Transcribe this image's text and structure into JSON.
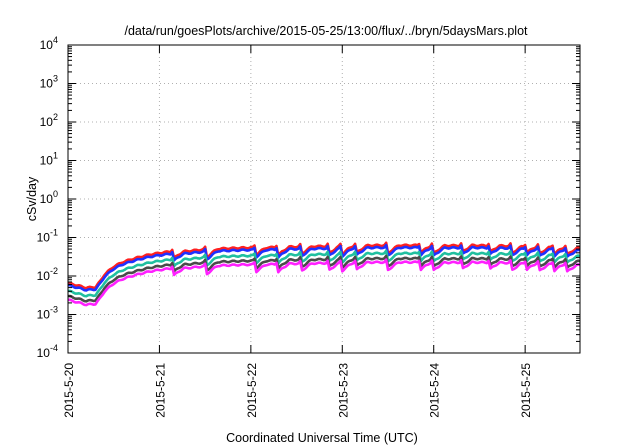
{
  "chart_data": {
    "type": "line",
    "title": "/data/run/goesPlots/archive/2015-05-25/13:00/flux/../bryn/5daysMars.plot",
    "xlabel": "Coordinated Universal Time (UTC)",
    "ylabel": "cSv/day",
    "yscale": "log",
    "ylim": [
      0.0001,
      10000
    ],
    "xlim": [
      0,
      5.6
    ],
    "grid": true,
    "y_ticks": [
      {
        "base": "10",
        "exp": "-4"
      },
      {
        "base": "10",
        "exp": "-3"
      },
      {
        "base": "10",
        "exp": "-2"
      },
      {
        "base": "10",
        "exp": "-1"
      },
      {
        "base": "10",
        "exp": "0"
      },
      {
        "base": "10",
        "exp": "1"
      },
      {
        "base": "10",
        "exp": "2"
      },
      {
        "base": "10",
        "exp": "3"
      },
      {
        "base": "10",
        "exp": "4"
      }
    ],
    "x_ticks": [
      "2015-5-20",
      "2015-5-21",
      "2015-5-22",
      "2015-5-23",
      "2015-5-24",
      "2015-5-25"
    ],
    "x_tick_days": [
      0,
      1,
      2,
      3,
      4,
      5
    ],
    "base_profile": {
      "x_days": [
        0.0,
        0.1,
        0.2,
        0.3,
        0.35,
        0.4,
        0.5,
        0.6,
        0.7,
        0.8,
        0.9,
        1.0,
        1.15,
        1.3,
        1.5,
        1.7,
        1.9,
        2.05,
        2.2,
        2.4,
        2.6,
        2.8,
        3.0,
        3.2,
        3.4,
        3.6,
        3.8,
        4.0,
        4.2,
        4.4,
        4.6,
        4.8,
        5.0,
        5.2,
        5.4,
        5.6
      ],
      "values": [
        0.006,
        0.0052,
        0.0045,
        0.0047,
        0.0065,
        0.01,
        0.016,
        0.021,
        0.025,
        0.029,
        0.033,
        0.036,
        0.04,
        0.04,
        0.045,
        0.047,
        0.049,
        0.05,
        0.05,
        0.052,
        0.053,
        0.054,
        0.055,
        0.056,
        0.057,
        0.057,
        0.057,
        0.056,
        0.056,
        0.057,
        0.056,
        0.055,
        0.054,
        0.052,
        0.05,
        0.048
      ]
    },
    "dip_days": [
      1.15,
      1.52,
      2.05,
      2.3,
      2.55,
      2.85,
      3.0,
      3.15,
      3.5,
      3.85,
      4.0,
      4.3,
      4.6,
      4.85,
      5.0,
      5.15,
      5.3,
      5.45
    ],
    "series": [
      {
        "color": "#ff2020",
        "scale": 1.1
      },
      {
        "color": "#2030ff",
        "scale": 0.96
      },
      {
        "color": "#20c0a0",
        "scale": 0.68
      },
      {
        "color": "#4a4a4a",
        "scale": 0.5
      },
      {
        "color": "#ff20ff",
        "scale": 0.4
      }
    ]
  }
}
